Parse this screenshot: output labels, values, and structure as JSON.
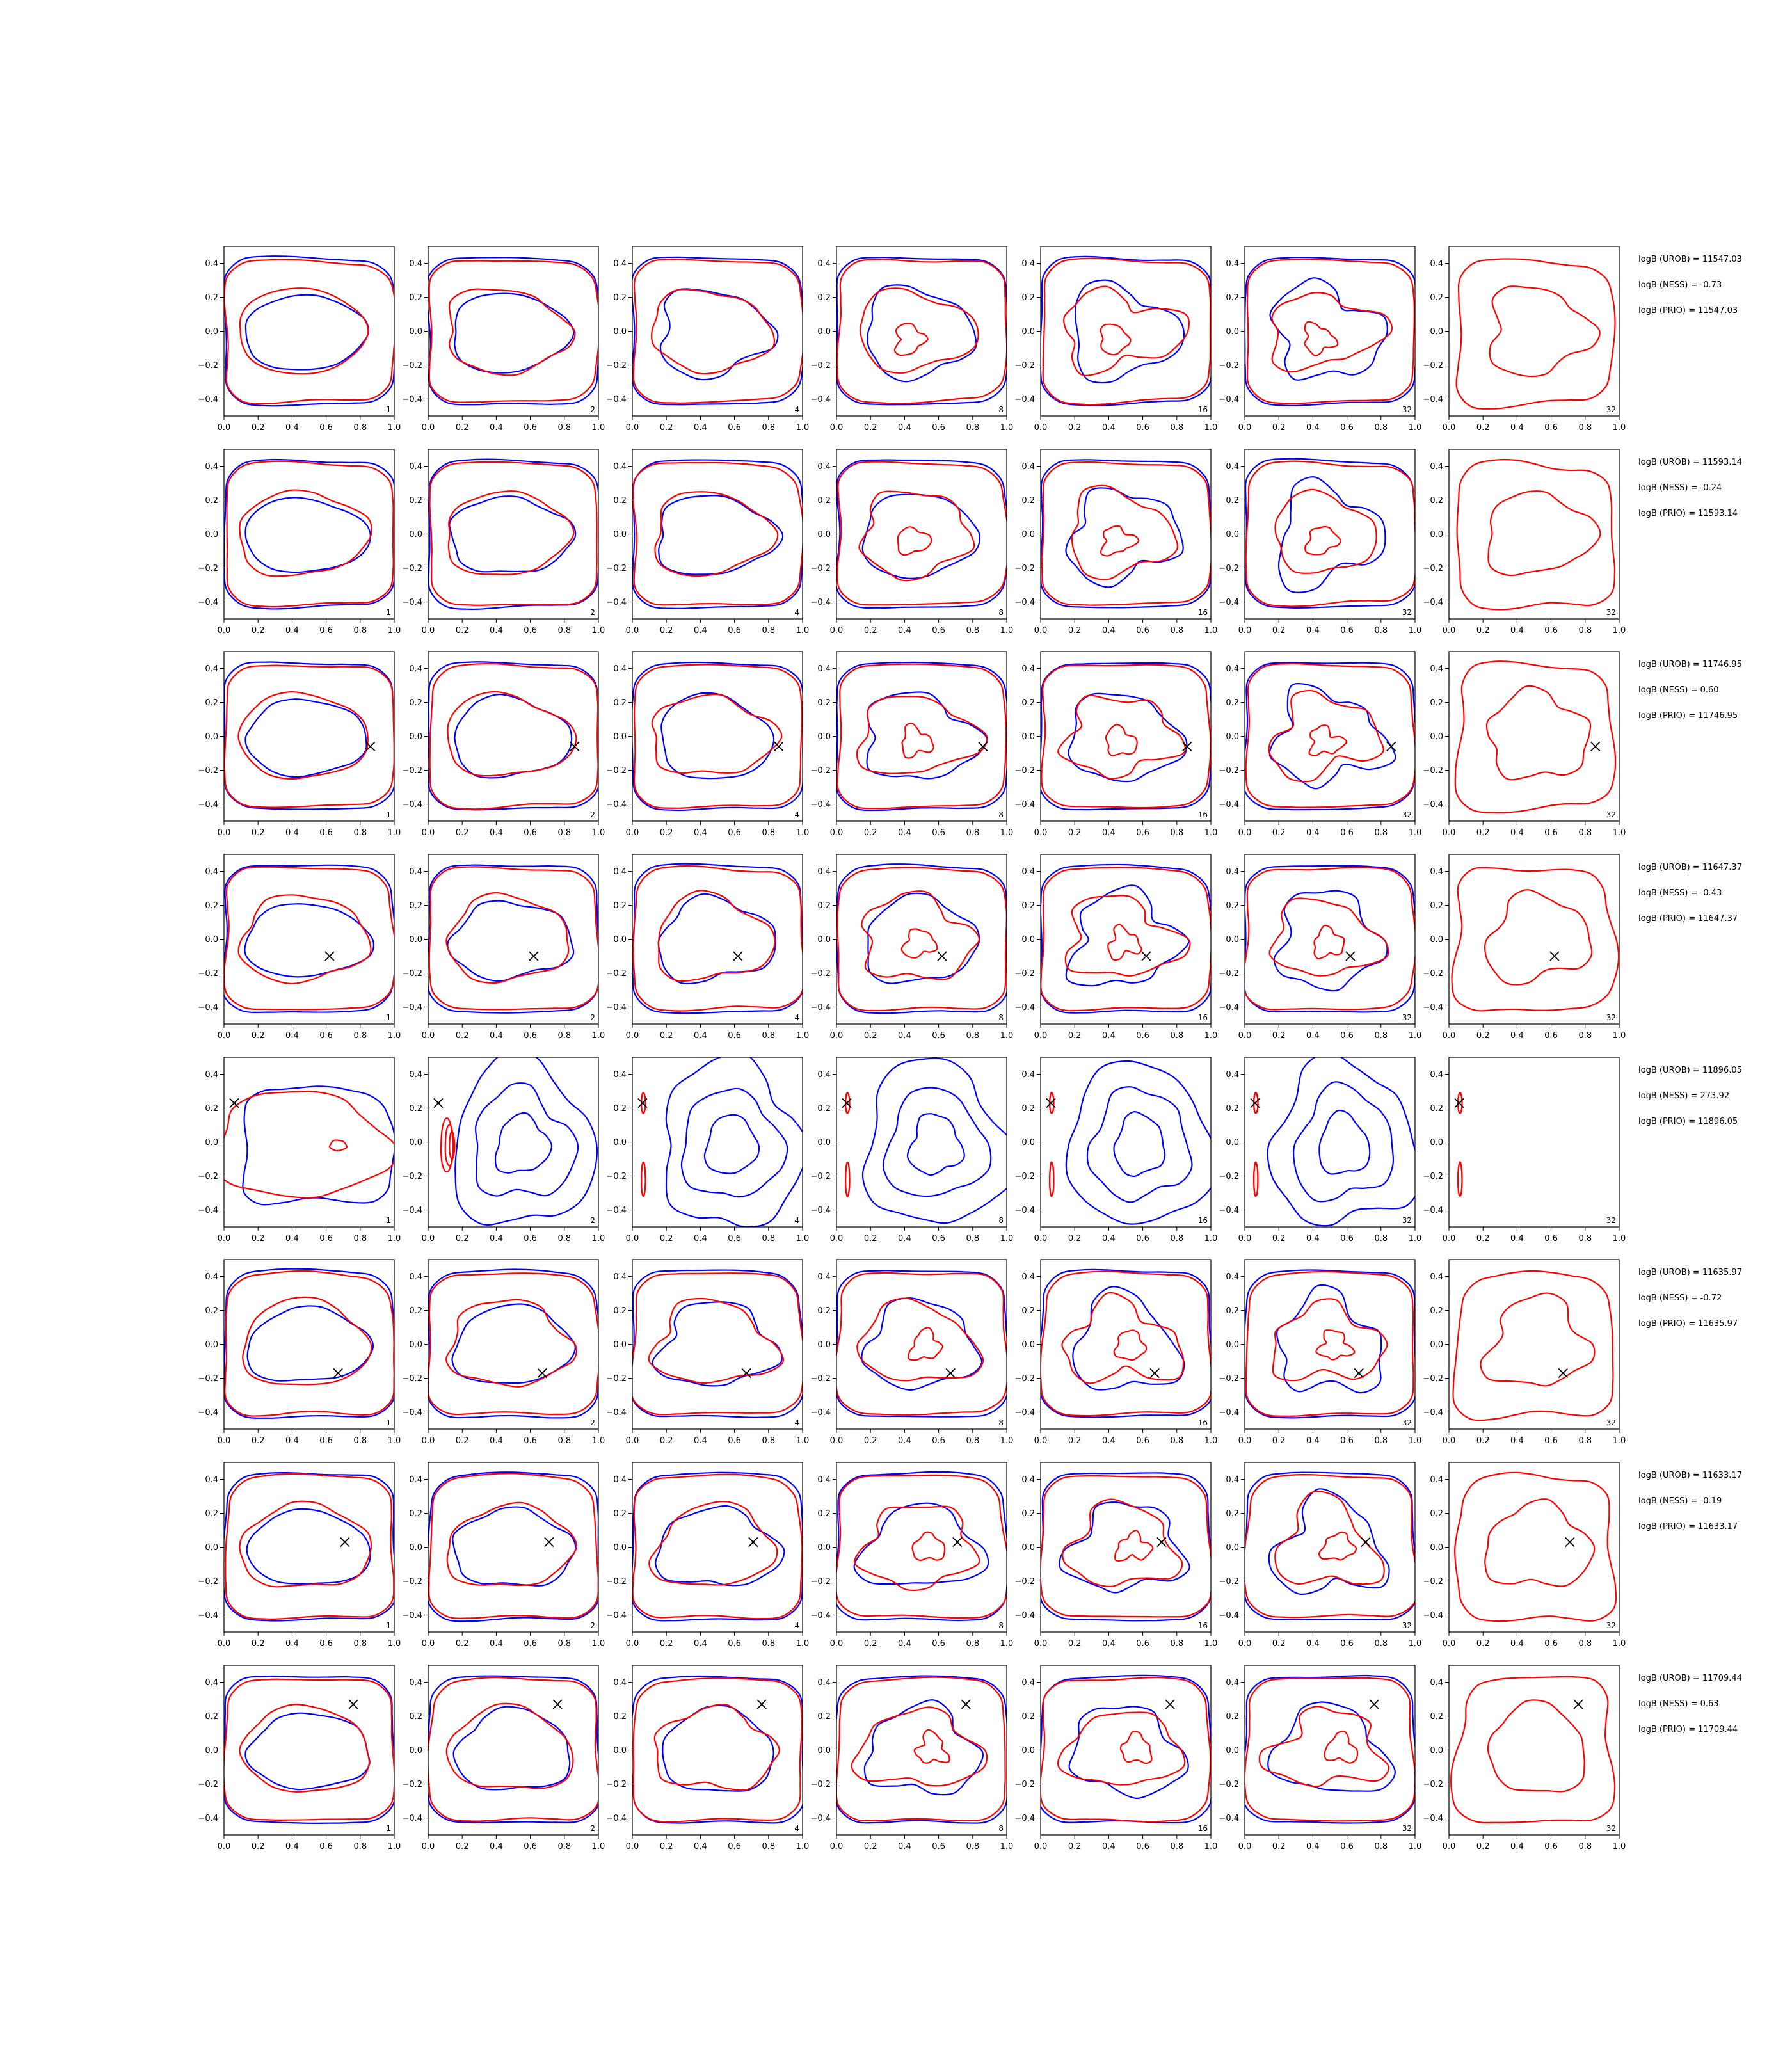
{
  "chart_data": {
    "type": "contour",
    "layout": {
      "rows": 8,
      "cols": 7
    },
    "x_ticks": [
      "0.0",
      "0.2",
      "0.4",
      "0.6",
      "0.8",
      "1.0"
    ],
    "y_ticks": [
      "0.4",
      "0.2",
      "0.0",
      "−0.2",
      "−0.4"
    ],
    "xlim": [
      0.0,
      1.0
    ],
    "ylim": [
      -0.5,
      0.5
    ],
    "colors": {
      "series_a": "#0000ff",
      "series_b": "#ff0000",
      "marker": "#000000"
    },
    "corner_labels": [
      "1",
      "2",
      "4",
      "8",
      "16",
      "32",
      "32"
    ],
    "rows": [
      {
        "stats": [
          "logB (UROB) = 11547.03",
          "logB (NESS) = -0.73",
          "logB (PRIO) = 11547.03"
        ],
        "marker": null,
        "special": false
      },
      {
        "stats": [
          "logB (UROB) = 11593.14",
          "logB (NESS) = -0.24",
          "logB (PRIO) = 11593.14"
        ],
        "marker": null,
        "special": false
      },
      {
        "stats": [
          "logB (UROB) = 11746.95",
          "logB (NESS) = 0.60",
          "logB (PRIO) = 11746.95"
        ],
        "marker": [
          0.86,
          -0.06
        ],
        "special": false
      },
      {
        "stats": [
          "logB (UROB) = 11647.37",
          "logB (NESS) = -0.43",
          "logB (PRIO) = 11647.37"
        ],
        "marker": [
          0.62,
          -0.1
        ],
        "special": false
      },
      {
        "stats": [
          "logB (UROB) = 11896.05",
          "logB (NESS) = 273.92",
          "logB (PRIO) = 11896.05"
        ],
        "marker": [
          0.06,
          0.23
        ],
        "special": true
      },
      {
        "stats": [
          "logB (UROB) = 11635.97",
          "logB (NESS) = -0.72",
          "logB (PRIO) = 11635.97"
        ],
        "marker": [
          0.67,
          -0.17
        ],
        "special": false
      },
      {
        "stats": [
          "logB (UROB) = 11633.17",
          "logB (NESS) = -0.19",
          "logB (PRIO) = 11633.17"
        ],
        "marker": [
          0.71,
          0.03
        ],
        "special": false
      },
      {
        "stats": [
          "logB (UROB) = 11709.44",
          "logB (NESS) = 0.63",
          "logB (PRIO) = 11709.44"
        ],
        "marker": [
          0.76,
          0.27
        ],
        "special": false
      }
    ]
  }
}
